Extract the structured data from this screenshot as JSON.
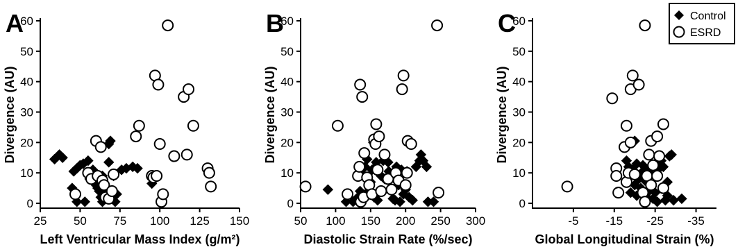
{
  "chart_data": [
    {
      "type": "scatter",
      "panel_label": "A",
      "xlabel": "Left  Ventricular Mass  Index (g/m²)",
      "ylabel": "Divergence  (AU)",
      "xlim": [
        25,
        150
      ],
      "ylim": [
        0,
        60
      ],
      "xticks": [
        25,
        50,
        75,
        100,
        125,
        150
      ],
      "yticks": [
        0,
        10,
        20,
        30,
        40,
        50,
        60
      ],
      "grid": false,
      "series": [
        {
          "name": "Control",
          "marker": "filled-diamond",
          "points": [
            [
              34,
              14.5
            ],
            [
              37,
              16
            ],
            [
              39,
              15
            ],
            [
              45,
              5
            ],
            [
              46,
              10.5
            ],
            [
              48,
              11.5
            ],
            [
              48,
              0.5
            ],
            [
              50,
              12.5
            ],
            [
              52,
              13
            ],
            [
              53,
              0.5
            ],
            [
              55,
              14
            ],
            [
              56,
              8
            ],
            [
              57,
              10
            ],
            [
              58,
              11
            ],
            [
              59,
              7
            ],
            [
              60,
              6
            ],
            [
              61,
              5
            ],
            [
              62,
              4
            ],
            [
              63,
              2
            ],
            [
              64,
              9
            ],
            [
              64,
              0.5
            ],
            [
              65,
              6
            ],
            [
              66,
              3.5
            ],
            [
              67,
              2
            ],
            [
              68,
              19.5
            ],
            [
              68,
              13.5
            ],
            [
              69,
              20.5
            ],
            [
              70,
              1.5
            ],
            [
              71,
              9
            ],
            [
              72,
              0.5
            ],
            [
              73,
              3
            ],
            [
              76,
              11
            ],
            [
              79,
              11.5
            ],
            [
              83,
              12
            ],
            [
              86,
              11.5
            ],
            [
              95,
              6.5
            ]
          ]
        },
        {
          "name": "ESRD",
          "marker": "open-circle",
          "points": [
            [
              47,
              3
            ],
            [
              55,
              10
            ],
            [
              57,
              8
            ],
            [
              60,
              20.5
            ],
            [
              61,
              9
            ],
            [
              63,
              18.5
            ],
            [
              64,
              7.5
            ],
            [
              65,
              6
            ],
            [
              66,
              2
            ],
            [
              68,
              1.5
            ],
            [
              70,
              4
            ],
            [
              71,
              9.5
            ],
            [
              85,
              22
            ],
            [
              87,
              25.5
            ],
            [
              95,
              9
            ],
            [
              96,
              8.5
            ],
            [
              97,
              42
            ],
            [
              98,
              9
            ],
            [
              99,
              39
            ],
            [
              100,
              19.5
            ],
            [
              101,
              0.5
            ],
            [
              102,
              3
            ],
            [
              105,
              58.5
            ],
            [
              109,
              15.5
            ],
            [
              115,
              35
            ],
            [
              117,
              16
            ],
            [
              118,
              37.5
            ],
            [
              121,
              25.5
            ],
            [
              130,
              11.5
            ],
            [
              131,
              10
            ],
            [
              132,
              5.5
            ]
          ]
        }
      ]
    },
    {
      "type": "scatter",
      "panel_label": "B",
      "xlabel": "Diastolic Strain  Rate (%/sec)",
      "ylabel": "Divergence (AU)",
      "xlim": [
        50,
        300
      ],
      "ylim": [
        0,
        60
      ],
      "xticks": [
        50,
        100,
        150,
        200,
        250,
        300
      ],
      "yticks": [
        0,
        10,
        20,
        30,
        40,
        50,
        60
      ],
      "grid": false,
      "series": [
        {
          "name": "Control",
          "marker": "filled-diamond",
          "points": [
            [
              89,
              4.5
            ],
            [
              115,
              0.5
            ],
            [
              125,
              0.5
            ],
            [
              132,
              2
            ],
            [
              135,
              4
            ],
            [
              140,
              9
            ],
            [
              142,
              12
            ],
            [
              145,
              14.5
            ],
            [
              147,
              4
            ],
            [
              150,
              7
            ],
            [
              152,
              11
            ],
            [
              154,
              20
            ],
            [
              155,
              2
            ],
            [
              157,
              12
            ],
            [
              158,
              13.5
            ],
            [
              160,
              1
            ],
            [
              162,
              4
            ],
            [
              165,
              9
            ],
            [
              168,
              14
            ],
            [
              170,
              8
            ],
            [
              175,
              13.5
            ],
            [
              176,
              10.5
            ],
            [
              180,
              9
            ],
            [
              182,
              1.5
            ],
            [
              184,
              8
            ],
            [
              185,
              1
            ],
            [
              187,
              12
            ],
            [
              190,
              6
            ],
            [
              192,
              0.5
            ],
            [
              194,
              11
            ],
            [
              197,
              3
            ],
            [
              200,
              4.5
            ],
            [
              202,
              10.5
            ],
            [
              205,
              2
            ],
            [
              210,
              1
            ],
            [
              215,
              12
            ],
            [
              220,
              14
            ],
            [
              222,
              16
            ],
            [
              225,
              14
            ],
            [
              230,
              12
            ],
            [
              232,
              0.5
            ],
            [
              240,
              0.5
            ]
          ]
        },
        {
          "name": "ESRD",
          "marker": "open-circle",
          "points": [
            [
              57,
              5.5
            ],
            [
              103,
              25.5
            ],
            [
              117,
              3
            ],
            [
              132,
              9
            ],
            [
              134,
              12
            ],
            [
              135,
              39
            ],
            [
              136,
              0.5
            ],
            [
              138,
              35
            ],
            [
              140,
              2
            ],
            [
              141,
              16.5
            ],
            [
              145,
              8.5
            ],
            [
              148,
              6
            ],
            [
              152,
              3
            ],
            [
              155,
              21
            ],
            [
              157,
              19.5
            ],
            [
              158,
              26
            ],
            [
              160,
              11
            ],
            [
              162,
              22
            ],
            [
              165,
              4
            ],
            [
              170,
              16
            ],
            [
              175,
              8
            ],
            [
              180,
              4.5
            ],
            [
              186,
              10
            ],
            [
              190,
              7.5
            ],
            [
              195,
              37.5
            ],
            [
              197,
              42
            ],
            [
              200,
              6
            ],
            [
              202,
              10
            ],
            [
              203,
              20.5
            ],
            [
              208,
              19.5
            ],
            [
              245,
              58.5
            ],
            [
              247,
              3.5
            ]
          ]
        }
      ]
    },
    {
      "type": "scatter",
      "panel_label": "C",
      "xlabel": "Global Longitudinal Strain (%)",
      "ylabel": "Divergence (AU)",
      "xlim": [
        5,
        -40
      ],
      "ylim": [
        0,
        60
      ],
      "xticks": [
        -5,
        -15,
        -25,
        -35
      ],
      "yticks": [
        0,
        10,
        20,
        30,
        40,
        50,
        60
      ],
      "grid": false,
      "series": [
        {
          "name": "Control",
          "marker": "filled-diamond",
          "points": [
            [
              -18,
              14
            ],
            [
              -18.5,
              12
            ],
            [
              -19,
              10.5
            ],
            [
              -19,
              3.5
            ],
            [
              -19.5,
              11
            ],
            [
              -20,
              20.5
            ],
            [
              -20,
              6
            ],
            [
              -20.5,
              13
            ],
            [
              -20.5,
              2.5
            ],
            [
              -21,
              8
            ],
            [
              -21,
              9
            ],
            [
              -21.5,
              5
            ],
            [
              -22,
              10.5
            ],
            [
              -22,
              12.5
            ],
            [
              -22.5,
              7.5
            ],
            [
              -23,
              2
            ],
            [
              -23,
              11
            ],
            [
              -23.5,
              4
            ],
            [
              -24,
              9.5
            ],
            [
              -24.5,
              1.5
            ],
            [
              -25,
              13
            ],
            [
              -25,
              3.5
            ],
            [
              -25.5,
              0.5
            ],
            [
              -26,
              11.5
            ],
            [
              -26.5,
              14
            ],
            [
              -27,
              12
            ],
            [
              -27.5,
              1
            ],
            [
              -28,
              2.5
            ],
            [
              -28,
              7
            ],
            [
              -28.5,
              15.5
            ],
            [
              -29,
              16
            ],
            [
              -29.5,
              1
            ],
            [
              -31.5,
              1.5
            ]
          ]
        },
        {
          "name": "ESRD",
          "marker": "open-circle",
          "points": [
            [
              -3.5,
              5.5
            ],
            [
              -14.5,
              34.5
            ],
            [
              -15.5,
              11.5
            ],
            [
              -15.5,
              9
            ],
            [
              -16,
              3.5
            ],
            [
              -17.5,
              18.5
            ],
            [
              -18,
              25.5
            ],
            [
              -18,
              7
            ],
            [
              -18.5,
              10
            ],
            [
              -19,
              20
            ],
            [
              -19,
              37.5
            ],
            [
              -19.5,
              42
            ],
            [
              -20,
              9.5
            ],
            [
              -21,
              39
            ],
            [
              -22,
              3.5
            ],
            [
              -22.5,
              58.5
            ],
            [
              -22.5,
              0.5
            ],
            [
              -23,
              9
            ],
            [
              -23.5,
              16
            ],
            [
              -24,
              6
            ],
            [
              -24,
              20.5
            ],
            [
              -24.5,
              12.5
            ],
            [
              -25.5,
              22
            ],
            [
              -25.5,
              9
            ],
            [
              -26,
              15.5
            ],
            [
              -27,
              26
            ],
            [
              -27,
              5
            ]
          ]
        }
      ]
    }
  ],
  "legend": {
    "entries": [
      "Control",
      "ESRD"
    ],
    "placement": "top-right"
  }
}
